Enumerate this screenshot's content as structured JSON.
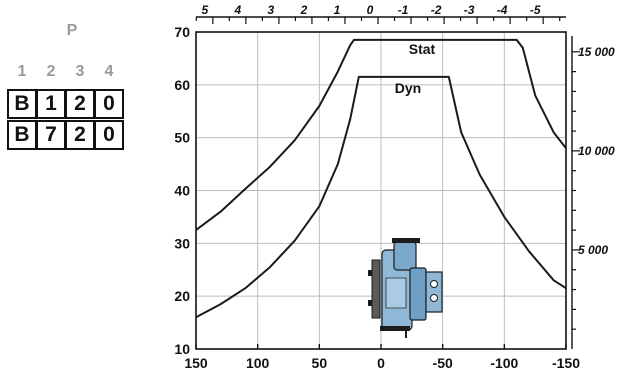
{
  "code_panel": {
    "title": "P",
    "positions": [
      "1",
      "2",
      "3",
      "4"
    ],
    "rows": [
      [
        "B",
        "1",
        "2",
        "0"
      ],
      [
        "B",
        "7",
        "2",
        "0"
      ]
    ]
  },
  "chart_data": {
    "type": "line",
    "x_bottom": {
      "range": [
        150,
        -150
      ],
      "ticks": [
        "150",
        "100",
        "50",
        "0",
        "-50",
        "-100",
        "-150"
      ],
      "tick_values": [
        150,
        100,
        50,
        0,
        -50,
        -100,
        -150
      ]
    },
    "x_top": {
      "ticks": [
        "5",
        "4",
        "3",
        "2",
        "1",
        "0",
        "-1",
        "-2",
        "-3",
        "-4",
        "-5"
      ],
      "tick_values": [
        5,
        4,
        3,
        2,
        1,
        0,
        -1,
        -2,
        -3,
        -4,
        -5
      ]
    },
    "y_left": {
      "range": [
        10,
        70
      ],
      "ticks": [
        "10",
        "20",
        "30",
        "40",
        "50",
        "60",
        "70"
      ],
      "tick_values": [
        10,
        20,
        30,
        40,
        50,
        60,
        70
      ]
    },
    "y_right": {
      "ticks": [
        "5 000",
        "10 000",
        "15 000"
      ],
      "tick_values": [
        5000,
        10000,
        15000
      ],
      "range": [
        0,
        16000
      ]
    },
    "grid": true,
    "series": [
      {
        "name": "Stat",
        "x": [
          150,
          130,
          110,
          90,
          70,
          50,
          35,
          25,
          22,
          -25,
          -50,
          -110,
          -115,
          -125,
          -140,
          -150
        ],
        "y": [
          32.5,
          36,
          40.3,
          44.5,
          49.5,
          56,
          62.5,
          67.5,
          68.5,
          68.5,
          68.5,
          68.5,
          67,
          58,
          51,
          48
        ]
      },
      {
        "name": "Dyn",
        "x": [
          150,
          130,
          110,
          90,
          70,
          50,
          35,
          25,
          18,
          -15,
          -50,
          -55,
          -65,
          -80,
          -100,
          -120,
          -140,
          -150
        ],
        "y": [
          16,
          18.5,
          21.5,
          25.5,
          30.5,
          37,
          45,
          53.5,
          61.5,
          61.5,
          61.5,
          61.5,
          51,
          43,
          35,
          28.5,
          23,
          21.5
        ]
      }
    ]
  }
}
